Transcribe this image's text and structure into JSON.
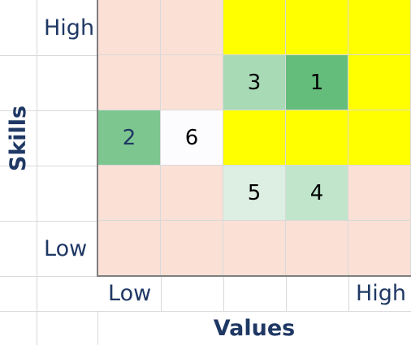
{
  "chart_data": {
    "type": "heatmap",
    "xlabel": "Values",
    "ylabel": "Skills",
    "x_tick_labels": [
      "Low",
      "",
      "",
      "",
      "High"
    ],
    "y_tick_labels": [
      "High",
      "",
      "",
      "",
      "Low"
    ],
    "rows": [
      [
        "",
        "",
        "",
        "",
        ""
      ],
      [
        "",
        "",
        "3",
        "1",
        ""
      ],
      [
        "2",
        "6",
        "",
        "",
        ""
      ],
      [
        "",
        "",
        "5",
        "4",
        ""
      ],
      [
        "",
        "",
        "",
        "",
        ""
      ]
    ],
    "cell_colors": [
      [
        "#fbe0d6",
        "#fbe0d6",
        "#ffff00",
        "#ffff00",
        "#ffff00"
      ],
      [
        "#fbe0d6",
        "#fbe0d6",
        "#a8dab6",
        "#65bd7c",
        "#ffff00"
      ],
      [
        "#7dc690",
        "#fcfcff",
        "#ffff00",
        "#ffff00",
        "#ffff00"
      ],
      [
        "#fbe0d6",
        "#fbe0d6",
        "#dcefe2",
        "#c0e5cb",
        "#fbe0d6"
      ],
      [
        "#fbe0d6",
        "#fbe0d6",
        "#fbe0d6",
        "#fbe0d6",
        "#fbe0d6"
      ]
    ],
    "colors": {
      "label_text": "#1f3864",
      "gridline": "#d9d9d9",
      "axis_line": "#7f7f7f"
    }
  }
}
